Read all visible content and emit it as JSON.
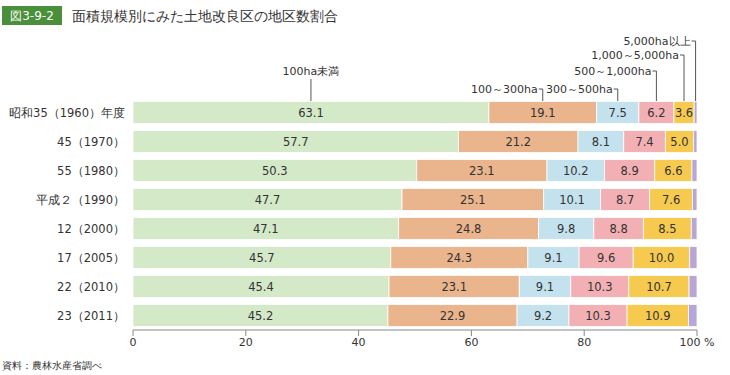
{
  "chart_data": {
    "type": "bar",
    "orientation": "horizontal",
    "stacked": true,
    "data_labels": true,
    "figure_label": "図3-9-2",
    "title": "面積規模別にみた土地改良区の地区数割合",
    "source": "資料：農林水産省調べ",
    "categories": [
      "昭和35（1960）年度",
      "45（1970）",
      "55（1980）",
      "平成２（1990）",
      "12（2000）",
      "17（2005）",
      "22（2010）",
      "23（2011）"
    ],
    "xlim": [
      0,
      100
    ],
    "xticks": [
      0,
      20,
      40,
      60,
      80,
      {
        "value": 100,
        "label": "100 %"
      }
    ],
    "series": [
      {
        "name": "100ha未満",
        "color": "#d4e9c8",
        "values": [
          63.1,
          57.7,
          50.3,
          47.7,
          47.1,
          45.7,
          45.4,
          45.2
        ]
      },
      {
        "name": "100～300ha",
        "color": "#eab48d",
        "values": [
          19.1,
          21.2,
          23.1,
          25.1,
          24.8,
          24.3,
          23.1,
          22.9
        ]
      },
      {
        "name": "300～500ha",
        "color": "#c4e2ee",
        "values": [
          7.5,
          8.1,
          10.2,
          10.1,
          9.8,
          9.1,
          9.1,
          9.2
        ]
      },
      {
        "name": "500～1,000ha",
        "color": "#f3b0b4",
        "values": [
          6.2,
          7.4,
          8.9,
          8.7,
          8.8,
          9.6,
          10.3,
          10.3
        ]
      },
      {
        "name": "1,000～5,000ha",
        "color": "#f6c94f",
        "values": [
          3.6,
          5.0,
          6.6,
          7.6,
          8.5,
          10.0,
          10.7,
          10.9
        ],
        "value_labels": [
          "3.6",
          "5.0",
          "6.6",
          "7.6",
          "8.5",
          "10.0",
          "10.7",
          "10.9"
        ]
      },
      {
        "name": "5,000ha以上",
        "color": "#b7a6d6",
        "values": [
          0.5,
          0.6,
          0.9,
          0.8,
          1.0,
          1.3,
          1.4,
          1.5
        ],
        "value_labels": [
          null,
          null,
          null,
          null,
          null,
          null,
          null,
          null
        ]
      }
    ]
  }
}
